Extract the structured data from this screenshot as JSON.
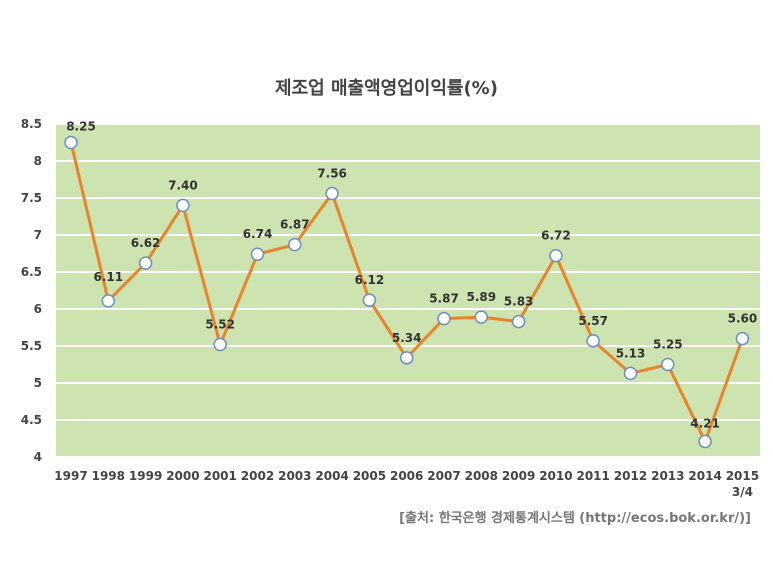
{
  "title": "제조업 매출액영업이익률(%)",
  "source": "[출처: 한국은행 경제통계시스템 (http://ecos.bok.or.kr/)]",
  "colors": {
    "plot_background": "#cde3b0",
    "gridline": "#ffffff",
    "line": "#e8852c",
    "marker_fill": "#ffffff",
    "marker_stroke": "#6c8fc4",
    "label_text": "#333333"
  },
  "chart_data": {
    "type": "line",
    "title": "제조업 매출액영업이익률(%)",
    "xlabel": "",
    "ylabel": "",
    "categories": [
      "1997",
      "1998",
      "1999",
      "2000",
      "2001",
      "2002",
      "2003",
      "2004",
      "2005",
      "2006",
      "2007",
      "2008",
      "2009",
      "2010",
      "2011",
      "2012",
      "2013",
      "2014",
      "2015\n3/4"
    ],
    "series": [
      {
        "values": [
          8.25,
          6.11,
          6.62,
          7.4,
          5.52,
          6.74,
          6.87,
          7.56,
          6.12,
          5.34,
          5.87,
          5.89,
          5.83,
          6.72,
          5.57,
          5.13,
          5.25,
          4.21,
          5.6
        ]
      }
    ],
    "data_labels": [
      "8.25",
      "6.11",
      "6.62",
      "7.40",
      "5.52",
      "6.74",
      "6.87",
      "7.56",
      "6.12",
      "5.34",
      "5.87",
      "5.89",
      "5.83",
      "6.72",
      "5.57",
      "5.13",
      "5.25",
      "4.21",
      "5.60"
    ],
    "y_ticks": [
      "4",
      "4.5",
      "5",
      "5.5",
      "6",
      "6.5",
      "7",
      "7.5",
      "8",
      "8.5"
    ],
    "ylim": [
      4,
      8.5
    ],
    "grid": true,
    "legend": "none",
    "markers": "circle"
  }
}
